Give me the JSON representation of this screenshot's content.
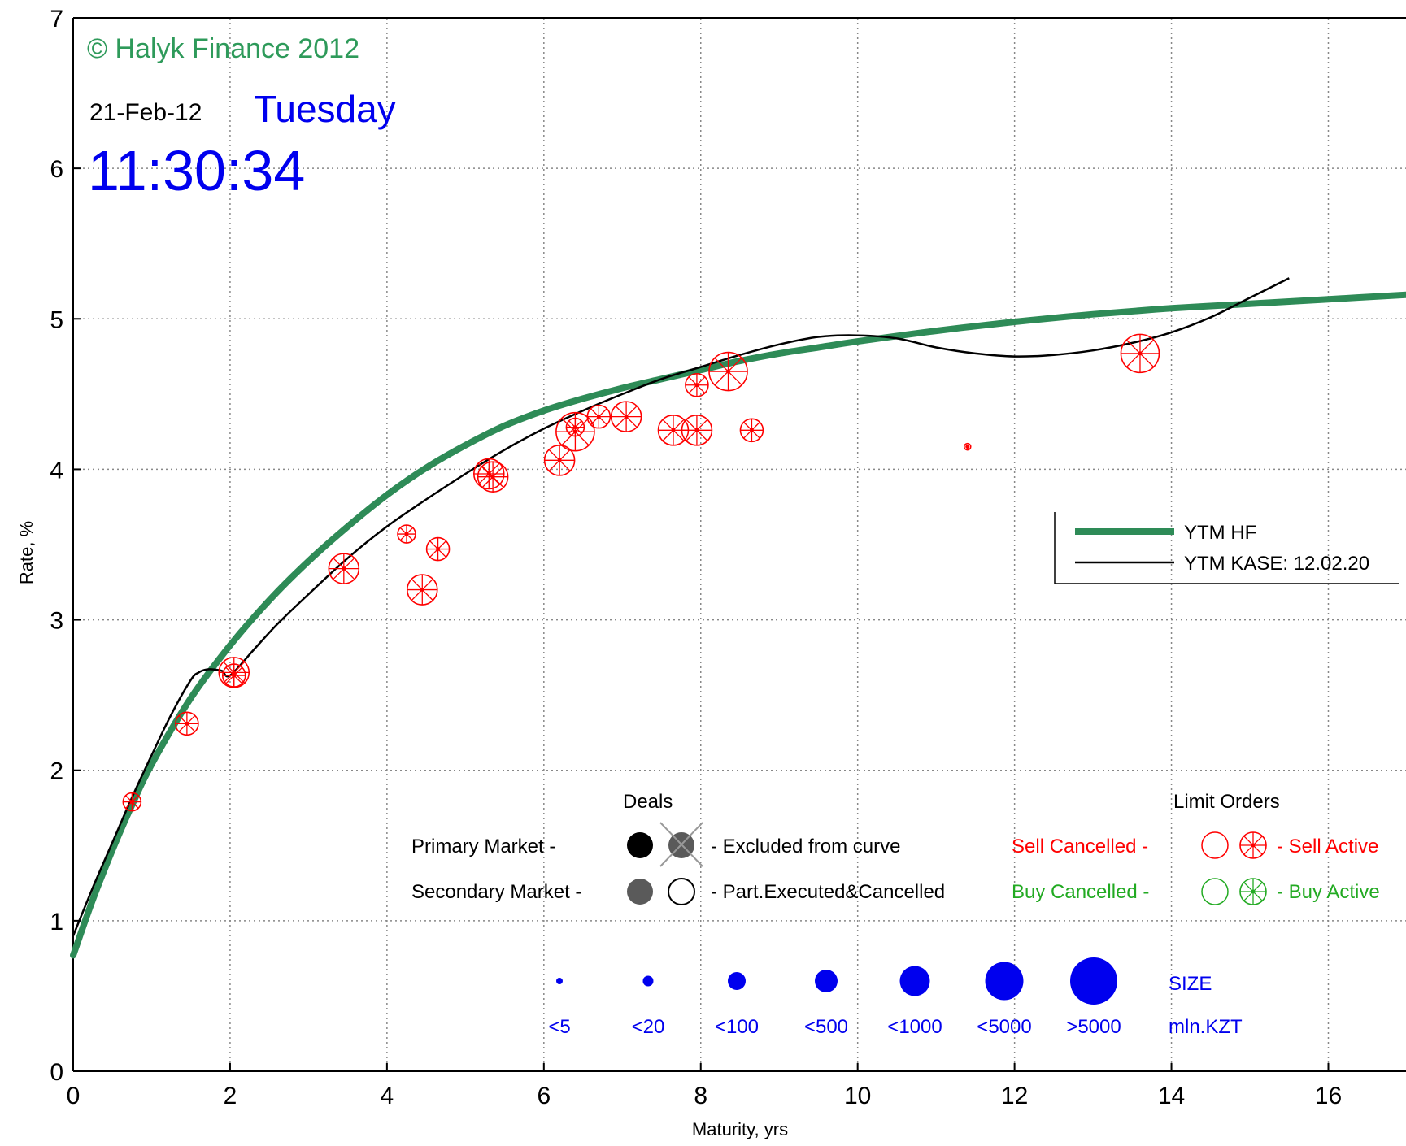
{
  "chart_data": {
    "type": "scatter",
    "title": "",
    "xlabel": "Maturity, yrs",
    "ylabel": "Rate, %",
    "xlim": [
      0,
      16.99
    ],
    "ylim": [
      0,
      7
    ],
    "xticks": [
      0,
      2,
      4,
      6,
      8,
      10,
      12,
      14,
      16
    ],
    "yticks": [
      0,
      1,
      2,
      3,
      4,
      5,
      6,
      7
    ],
    "grid": true,
    "watermark": "© Halyk Finance 2012",
    "date": "21-Feb-12",
    "weekday": "Tuesday",
    "time": "11:30:34",
    "colors": {
      "hf_curve": "#2e8b57",
      "kase_curve": "#000000",
      "sell": "#ff0000",
      "buy": "#22aa22",
      "size_legend": "#0000ee",
      "weekday": "#0000ee",
      "time": "#0000ee",
      "watermark": "#2e9a5a"
    },
    "series": [
      {
        "name": "YTM HF",
        "kind": "line",
        "x": [
          0,
          0.25,
          0.5,
          0.75,
          1,
          1.5,
          2,
          2.5,
          3,
          3.5,
          4,
          4.5,
          5,
          5.5,
          6,
          6.5,
          7,
          7.5,
          8,
          8.5,
          9,
          9.5,
          10,
          11,
          12,
          13,
          14,
          15,
          16,
          17
        ],
        "y": [
          0.77,
          1.14,
          1.47,
          1.77,
          2.04,
          2.48,
          2.83,
          3.13,
          3.39,
          3.62,
          3.83,
          4.01,
          4.16,
          4.29,
          4.39,
          4.47,
          4.54,
          4.6,
          4.66,
          4.72,
          4.77,
          4.81,
          4.85,
          4.92,
          4.98,
          5.03,
          5.07,
          5.1,
          5.13,
          5.16
        ]
      },
      {
        "name": "YTM KASE: 12.02.20",
        "kind": "line",
        "x": [
          0,
          0.25,
          0.5,
          0.75,
          1,
          1.25,
          1.5,
          1.6,
          1.7,
          1.8,
          1.9,
          2,
          2.3,
          2.6,
          3,
          3.5,
          4,
          4.5,
          5,
          5.5,
          6,
          6.5,
          7,
          7.5,
          8,
          8.5,
          9,
          9.5,
          10,
          10.5,
          11,
          11.5,
          12,
          12.5,
          13,
          13.5,
          14,
          14.5,
          15,
          15.5
        ],
        "y": [
          0.9,
          1.22,
          1.52,
          1.82,
          2.1,
          2.37,
          2.6,
          2.65,
          2.67,
          2.67,
          2.66,
          2.63,
          2.8,
          2.97,
          3.17,
          3.41,
          3.62,
          3.8,
          3.97,
          4.13,
          4.27,
          4.39,
          4.5,
          4.6,
          4.68,
          4.76,
          4.83,
          4.88,
          4.89,
          4.87,
          4.81,
          4.77,
          4.75,
          4.76,
          4.79,
          4.84,
          4.91,
          5.01,
          5.14,
          5.27
        ]
      }
    ],
    "limit_orders": [
      {
        "x": 0.75,
        "y": 1.79,
        "size": "<100",
        "status": "Sell Active"
      },
      {
        "x": 1.45,
        "y": 2.31,
        "size": "<500",
        "status": "Sell Active"
      },
      {
        "x": 2.05,
        "y": 2.65,
        "size": "<1000",
        "status": "Sell Active"
      },
      {
        "x": 2.05,
        "y": 2.63,
        "size": "<500",
        "status": "Sell Active"
      },
      {
        "x": 3.45,
        "y": 3.34,
        "size": "<1000",
        "status": "Sell Active"
      },
      {
        "x": 4.25,
        "y": 3.57,
        "size": "<100",
        "status": "Sell Active"
      },
      {
        "x": 4.65,
        "y": 3.47,
        "size": "<500",
        "status": "Sell Active"
      },
      {
        "x": 4.45,
        "y": 3.2,
        "size": "<1000",
        "status": "Sell Active"
      },
      {
        "x": 5.3,
        "y": 3.97,
        "size": "<1000",
        "status": "Sell Active"
      },
      {
        "x": 5.35,
        "y": 3.95,
        "size": "<1000",
        "status": "Sell Active"
      },
      {
        "x": 6.2,
        "y": 4.06,
        "size": "<1000",
        "status": "Sell Active"
      },
      {
        "x": 6.4,
        "y": 4.25,
        "size": "<5000",
        "status": "Sell Active"
      },
      {
        "x": 6.4,
        "y": 4.28,
        "size": "<100",
        "status": "Sell Active"
      },
      {
        "x": 6.7,
        "y": 4.35,
        "size": "<500",
        "status": "Sell Active"
      },
      {
        "x": 7.05,
        "y": 4.35,
        "size": "<1000",
        "status": "Sell Active"
      },
      {
        "x": 7.65,
        "y": 4.26,
        "size": "<1000",
        "status": "Sell Active"
      },
      {
        "x": 7.95,
        "y": 4.26,
        "size": "<1000",
        "status": "Sell Active"
      },
      {
        "x": 7.95,
        "y": 4.56,
        "size": "<500",
        "status": "Sell Active"
      },
      {
        "x": 8.35,
        "y": 4.65,
        "size": "<5000",
        "status": "Sell Active"
      },
      {
        "x": 8.65,
        "y": 4.26,
        "size": "<500",
        "status": "Sell Active"
      },
      {
        "x": 11.4,
        "y": 4.15,
        "size": "<5",
        "status": "Sell Active"
      },
      {
        "x": 13.6,
        "y": 4.77,
        "size": "<5000",
        "status": "Sell Active"
      }
    ],
    "legend": {
      "placement": "right",
      "entries": [
        "YTM HF",
        "YTM KASE: 12.02.20"
      ]
    },
    "key": {
      "deals_title": "Deals",
      "limit_orders_title": "Limit Orders",
      "primary_market": "Primary Market  -",
      "secondary_market": "Secondary Market -",
      "excluded": "- Excluded from curve",
      "part_executed": "- Part.Executed&Cancelled",
      "sell_cancelled": "Sell Cancelled -",
      "sell_active": "- Sell Active",
      "buy_cancelled": "Buy Cancelled -",
      "buy_active": "- Buy Active",
      "size_label": "SIZE",
      "size_unit": "mln.KZT",
      "size_bins": [
        {
          "label": "<5",
          "r": 4
        },
        {
          "label": "<20",
          "r": 6.5
        },
        {
          "label": "<100",
          "r": 11
        },
        {
          "label": "<500",
          "r": 14
        },
        {
          "label": "<1000",
          "r": 18.5
        },
        {
          "label": "<5000",
          "r": 23.5
        },
        {
          "label": ">5000",
          "r": 29
        }
      ]
    }
  }
}
